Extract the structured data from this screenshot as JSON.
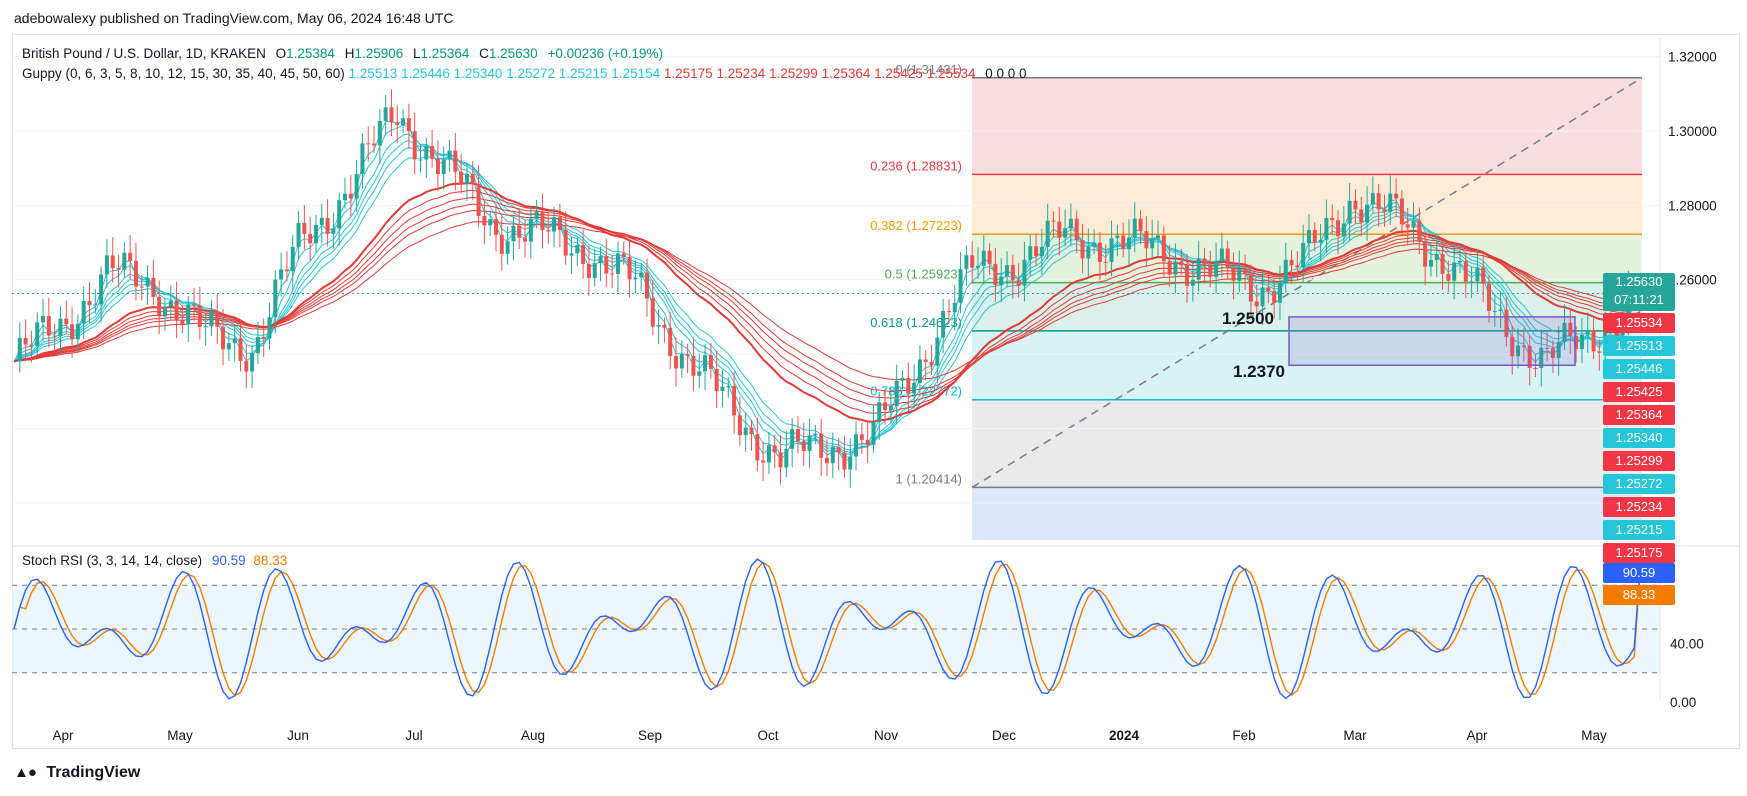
{
  "header": {
    "published": "adebowalexy published on TradingView.com, May 06, 2024 16:48 UTC"
  },
  "legend": {
    "symbol": "British Pound / U.S. Dollar, 1D, KRAKEN",
    "ohlc": [
      {
        "k": "O",
        "v": "1.25384"
      },
      {
        "k": "H",
        "v": "1.25906"
      },
      {
        "k": "L",
        "v": "1.25364"
      },
      {
        "k": "C",
        "v": "1.25630"
      }
    ],
    "change": "+0.00236 (+0.19%)",
    "guppy_label": "Guppy (0, 6, 3, 5, 8, 10, 12, 15, 30, 35, 40, 45, 50, 60)",
    "guppy_short": [
      "1.25513",
      "1.25446",
      "1.25340",
      "1.25272",
      "1.25215",
      "1.25154"
    ],
    "guppy_long": [
      "1.25175",
      "1.25234",
      "1.25299",
      "1.25364",
      "1.25425",
      "1.25534"
    ],
    "guppy_zeros": "0 0 0 0"
  },
  "colors": {
    "short_ema": "#26c6da",
    "long_ema": "#e53935",
    "up_candle": "#26a69a",
    "down_candle": "#ef5350",
    "stoch_k": "#2962ff",
    "stoch_d": "#f57c00",
    "price_tag": "#26a69a"
  },
  "fib": {
    "levels": [
      {
        "ratio": "0",
        "value": "(1.31431)",
        "label": "0 (1.31431)",
        "price": 1.31431,
        "color": "#787b86",
        "fill": "#f8d7da"
      },
      {
        "ratio": "0.236",
        "value": "(1.28831)",
        "label": "0.236 (1.28831)",
        "price": 1.28831,
        "color": "#f23645",
        "fill": "#fde7cf"
      },
      {
        "ratio": "0.382",
        "value": "(1.27223)",
        "label": "0.382 (1.27223)",
        "price": 1.27223,
        "color": "#ff9800",
        "fill": "#dff0d8"
      },
      {
        "ratio": "0.5",
        "value": "(1.25923)",
        "label": "0.5 (1.25923)",
        "price": 1.25923,
        "color": "#4caf50",
        "fill": "#d4efe8"
      },
      {
        "ratio": "0.618",
        "value": "(1.24623)",
        "label": "0.618 (1.24623)",
        "price": 1.24623,
        "color": "#089981",
        "fill": "#d0f1f5"
      },
      {
        "ratio": "0.786",
        "value": "(1.22772)",
        "label": "0.786 (1.22772)",
        "price": 1.22772,
        "color": "#00bcd4",
        "fill": "#e6e6e8"
      },
      {
        "ratio": "1",
        "value": "(1.20414)",
        "label": "1 (1.20414)",
        "price": 1.20414,
        "color": "#787b86",
        "fill": "#d7e3fc"
      }
    ]
  },
  "annotations": {
    "level_a": "1.2500",
    "level_b": "1.2370"
  },
  "price_axis": {
    "ticks": [
      "1.32000",
      "1.30000",
      "1.28000",
      "1.26000"
    ],
    "current_price": "1.25630",
    "countdown": "07:11:21",
    "tags": [
      {
        "v": "1.25534",
        "c": "#f23645"
      },
      {
        "v": "1.25513",
        "c": "#26c6da"
      },
      {
        "v": "1.25446",
        "c": "#26c6da"
      },
      {
        "v": "1.25425",
        "c": "#f23645"
      },
      {
        "v": "1.25364",
        "c": "#f23645"
      },
      {
        "v": "1.25340",
        "c": "#26c6da"
      },
      {
        "v": "1.25299",
        "c": "#f23645"
      },
      {
        "v": "1.25272",
        "c": "#26c6da"
      },
      {
        "v": "1.25234",
        "c": "#f23645"
      },
      {
        "v": "1.25215",
        "c": "#26c6da"
      },
      {
        "v": "1.25175",
        "c": "#f23645"
      }
    ]
  },
  "stoch": {
    "label": "Stoch RSI (3, 3, 14, 14, close)",
    "k": "90.59",
    "d": "88.33",
    "ticks": [
      "40.00",
      "0.00"
    ]
  },
  "time_axis": [
    "Apr",
    "May",
    "Jun",
    "Jul",
    "Aug",
    "Sep",
    "Oct",
    "Nov",
    "Dec",
    "2024",
    "Feb",
    "Mar",
    "Apr",
    "May"
  ],
  "chart_data": {
    "type": "candlestick",
    "title": "British Pound / U.S. Dollar, 1D, KRAKEN",
    "ylim": [
      1.19,
      1.325
    ],
    "monthly_close_approx": [
      {
        "x": "Apr 2023",
        "y": 1.245
      },
      {
        "x": "May 2023",
        "y": 1.265
      },
      {
        "x": "Jun 2023",
        "y": 1.242
      },
      {
        "x": "Jul 2023",
        "y": 1.305
      },
      {
        "x": "Aug 2023",
        "y": 1.275
      },
      {
        "x": "Sep 2023",
        "y": 1.255
      },
      {
        "x": "Oct 2023",
        "y": 1.215
      },
      {
        "x": "Nov 2023",
        "y": 1.215
      },
      {
        "x": "Dec 2023",
        "y": 1.265
      },
      {
        "x": "Jan 2024",
        "y": 1.272
      },
      {
        "x": "Feb 2024",
        "y": 1.264
      },
      {
        "x": "Mar 2024",
        "y": 1.283
      },
      {
        "x": "Apr 2024",
        "y": 1.238
      },
      {
        "x": "May 2024",
        "y": 1.2563
      }
    ],
    "stoch_k_ylim": [
      0,
      100
    ]
  }
}
